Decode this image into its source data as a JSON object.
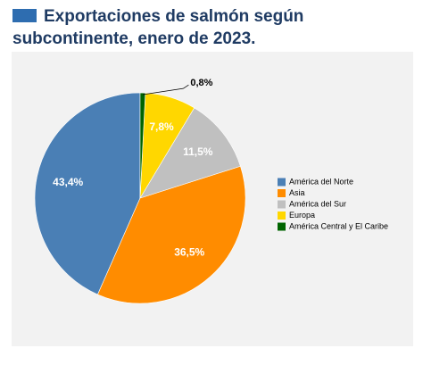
{
  "chart_data": {
    "type": "pie",
    "title": "Exportaciones de salmón según subcontinente, enero de 2023.",
    "categories": [
      "América del Norte",
      "Asia",
      "América del Sur",
      "Europa",
      "América Central y El Caribe"
    ],
    "values": [
      43.4,
      36.5,
      11.5,
      7.8,
      0.8
    ],
    "value_labels": [
      "43,4%",
      "36,5%",
      "11,5%",
      "7,8%",
      "0,8%"
    ],
    "colors": [
      "#4a7fb5",
      "#ff8c00",
      "#c0c0c0",
      "#ffd700",
      "#006400"
    ],
    "legend": "right"
  }
}
